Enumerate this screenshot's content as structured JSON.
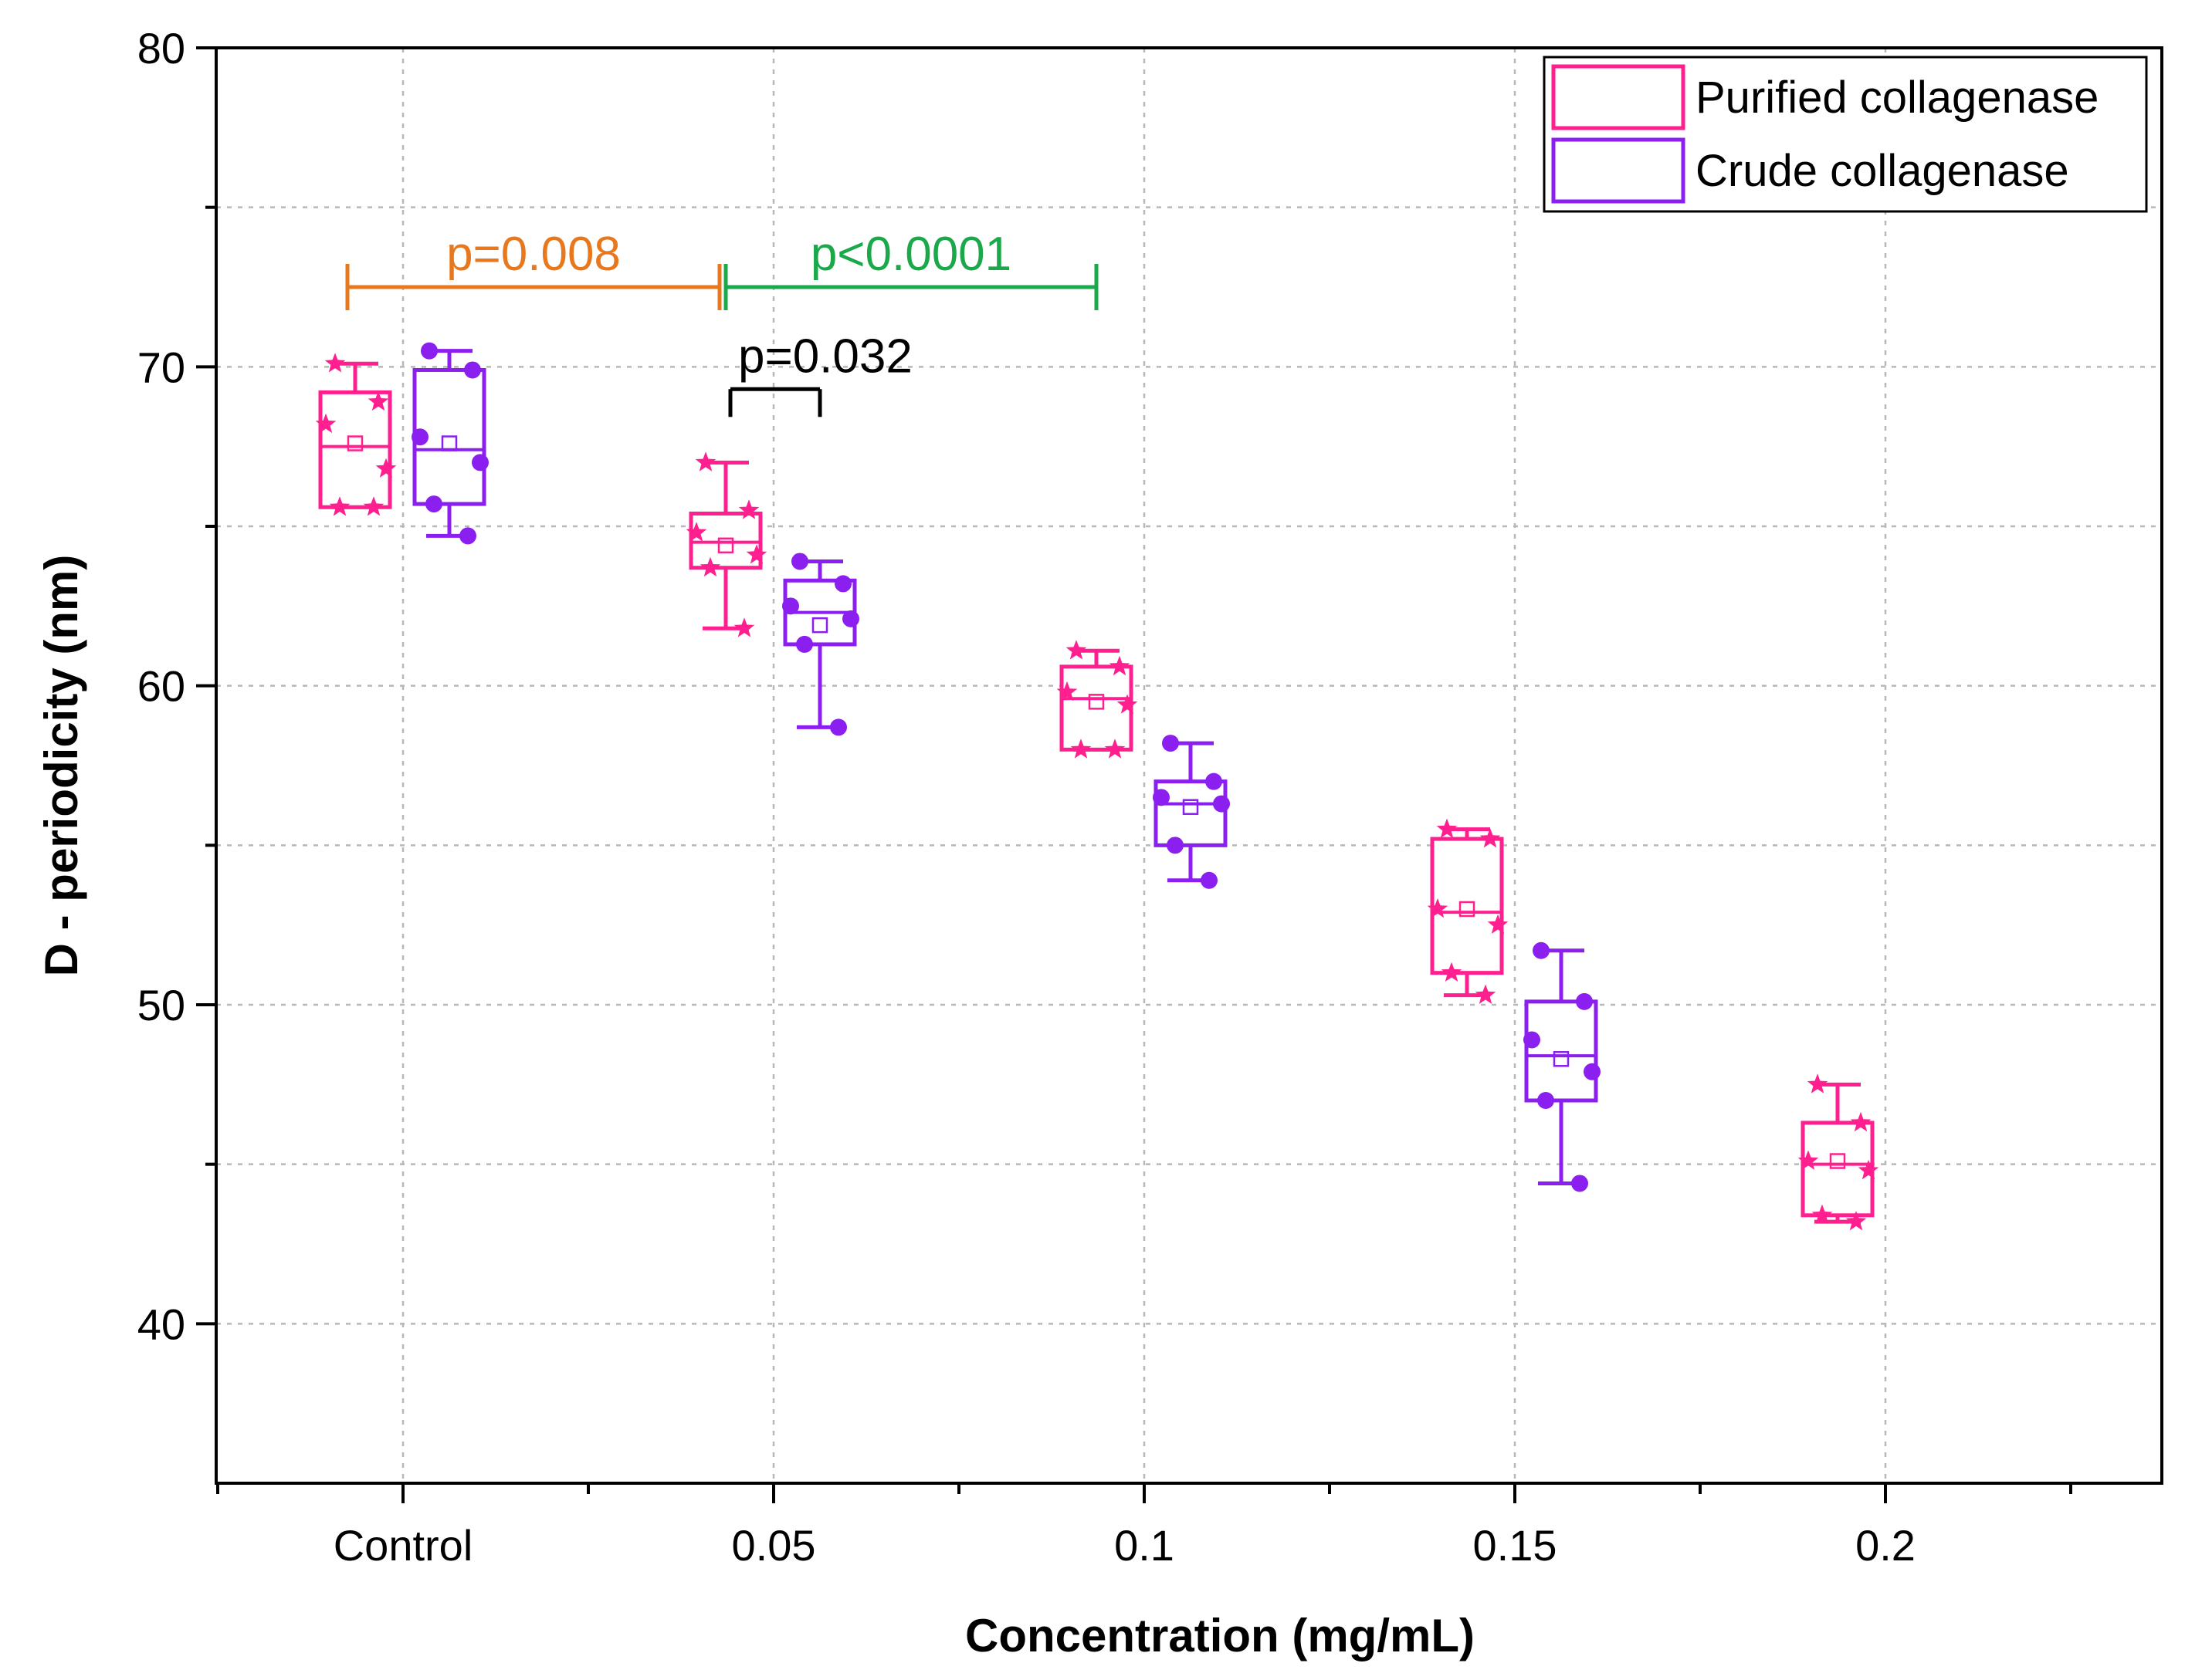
{
  "chart_data": {
    "type": "box",
    "xlabel": "Concentration (mg/mL)",
    "ylabel": "D - periodicity (nm)",
    "ylim": [
      35,
      80
    ],
    "yticks": [
      40,
      50,
      60,
      70,
      80
    ],
    "yminor": [
      45,
      55,
      65,
      75
    ],
    "categories": [
      "Control",
      "0.05",
      "0.1",
      "0.15",
      "0.2"
    ],
    "grid": true,
    "legend_position": "top-right",
    "series": [
      {
        "name": "Purified collagenase",
        "color": "#ff1f8f",
        "marker": "star",
        "boxes": [
          {
            "category": "Control",
            "whisker_low": 65.6,
            "q1": 65.6,
            "median": 67.5,
            "mean": 67.6,
            "q3": 69.2,
            "whisker_high": 70.1,
            "points": [
              70.1,
              68.9,
              68.2,
              66.8,
              65.6,
              65.6
            ]
          },
          {
            "category": "0.05",
            "whisker_low": 61.8,
            "q1": 63.7,
            "median": 64.5,
            "mean": 64.4,
            "q3": 65.4,
            "whisker_high": 67.0,
            "points": [
              67.0,
              65.5,
              64.8,
              64.1,
              63.7,
              61.8
            ]
          },
          {
            "category": "0.1",
            "whisker_low": 58.0,
            "q1": 58.0,
            "median": 59.6,
            "mean": 59.5,
            "q3": 60.6,
            "whisker_high": 61.1,
            "points": [
              61.1,
              60.6,
              59.8,
              59.4,
              58.0,
              58.0
            ]
          },
          {
            "category": "0.15",
            "whisker_low": 50.3,
            "q1": 51.0,
            "median": 52.9,
            "mean": 53.0,
            "q3": 55.2,
            "whisker_high": 55.5,
            "points": [
              55.5,
              55.2,
              53.0,
              52.5,
              51.0,
              50.3
            ]
          },
          {
            "category": "0.2",
            "whisker_low": 43.2,
            "q1": 43.4,
            "median": 45.0,
            "mean": 45.1,
            "q3": 46.3,
            "whisker_high": 47.5,
            "points": [
              47.5,
              46.3,
              45.1,
              44.8,
              43.4,
              43.2
            ]
          }
        ]
      },
      {
        "name": "Crude collagenase",
        "color": "#8b1ff0",
        "marker": "circle",
        "boxes": [
          {
            "category": "Control",
            "whisker_low": 64.7,
            "q1": 65.7,
            "median": 67.4,
            "mean": 67.6,
            "q3": 69.9,
            "whisker_high": 70.5,
            "points": [
              70.5,
              69.9,
              67.8,
              67.0,
              65.7,
              64.7
            ]
          },
          {
            "category": "0.05",
            "whisker_low": 58.7,
            "q1": 61.3,
            "median": 62.3,
            "mean": 61.9,
            "q3": 63.3,
            "whisker_high": 63.9,
            "points": [
              63.9,
              63.2,
              62.5,
              62.1,
              61.3,
              58.7
            ]
          },
          {
            "category": "0.1",
            "whisker_low": 53.9,
            "q1": 55.0,
            "median": 56.3,
            "mean": 56.2,
            "q3": 57.0,
            "whisker_high": 58.2,
            "points": [
              58.2,
              57.0,
              56.5,
              56.3,
              55.0,
              53.9
            ]
          },
          {
            "category": "0.15",
            "whisker_low": 44.4,
            "q1": 47.0,
            "median": 48.4,
            "mean": 48.3,
            "q3": 50.1,
            "whisker_high": 51.7,
            "points": [
              51.7,
              50.1,
              48.9,
              47.9,
              47.0,
              44.4
            ]
          }
        ]
      }
    ],
    "annotations": [
      {
        "text": "p=0.008",
        "color": "#e8781e",
        "from": "Control",
        "to": "0.05",
        "y": 72.5
      },
      {
        "text": "p<0.0001",
        "color": "#1aa84a",
        "from": "0.05",
        "to": "0.1",
        "y": 72.5
      },
      {
        "text": "p=0.032",
        "color": "#000000",
        "from": "0.05",
        "to": "0.05",
        "y": 69.3
      }
    ]
  }
}
